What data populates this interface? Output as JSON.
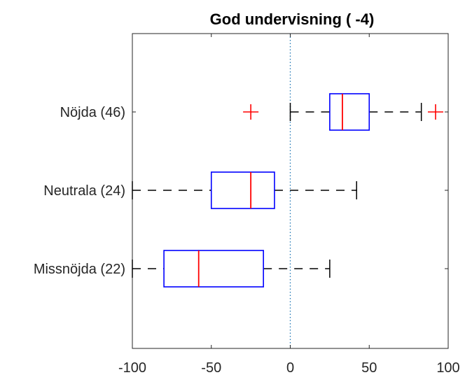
{
  "chart_data": {
    "type": "boxplot",
    "orientation": "horizontal",
    "title": "God undervisning ( -4)",
    "xlabel": "",
    "ylabel": "",
    "xlim": [
      -100,
      100
    ],
    "xticks": [
      -100,
      -50,
      0,
      50,
      100
    ],
    "reference_line": {
      "x": 0,
      "style": "dotted",
      "color": "#1f77b4"
    },
    "grid": false,
    "colors": {
      "box": "#0000ff",
      "median": "#ff0000",
      "whisker": "#000000",
      "outlier": "#ff0000"
    },
    "categories": [
      "Nöjda (46)",
      "Neutrala (24)",
      "Missnöjda (22)"
    ],
    "boxes": [
      {
        "label": "Nöjda (46)",
        "whisker_low": 0,
        "q1": 25,
        "median": 33,
        "q3": 50,
        "whisker_high": 83,
        "outliers": [
          -25,
          92
        ]
      },
      {
        "label": "Neutrala (24)",
        "whisker_low": -100,
        "q1": -50,
        "median": -25,
        "q3": -10,
        "whisker_high": 42,
        "outliers": []
      },
      {
        "label": "Missnöjda (22)",
        "whisker_low": -100,
        "q1": -80,
        "median": -58,
        "q3": -17,
        "whisker_high": 25,
        "outliers": []
      }
    ]
  }
}
